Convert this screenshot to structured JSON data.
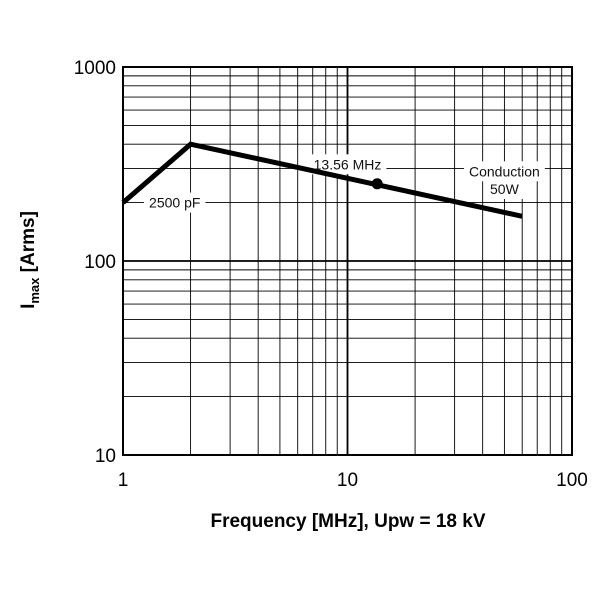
{
  "chart_data": {
    "type": "line",
    "title": "",
    "xlabel": "Frequency [MHz], Upw = 18 kV",
    "ylabel_main": "I",
    "ylabel_sub": "max",
    "ylabel_rest": " [Arms]",
    "x_scale": "log",
    "y_scale": "log",
    "xlim": [
      1,
      100
    ],
    "ylim": [
      10,
      1000
    ],
    "grid": true,
    "x_ticks": [
      {
        "value": 1,
        "label": "1"
      },
      {
        "value": 10,
        "label": "10"
      },
      {
        "value": 100,
        "label": "100"
      }
    ],
    "y_ticks": [
      {
        "value": 10,
        "label": "10"
      },
      {
        "value": 100,
        "label": "100"
      },
      {
        "value": 1000,
        "label": "1000"
      }
    ],
    "series": [
      {
        "x": [
          1,
          2,
          60
        ],
        "y": [
          200,
          400,
          170
        ],
        "color": "#000000"
      }
    ],
    "marker": {
      "x": 13.56,
      "y": 250
    },
    "annotations": [
      {
        "text": "2500 pF",
        "x": 1.7,
        "y": 200
      },
      {
        "text": "13.56 MHz",
        "x": 10,
        "y": 315
      },
      {
        "text": "Conduction",
        "x": 50,
        "y": 290
      },
      {
        "text": "50W",
        "x": 50,
        "y": 235
      }
    ]
  }
}
